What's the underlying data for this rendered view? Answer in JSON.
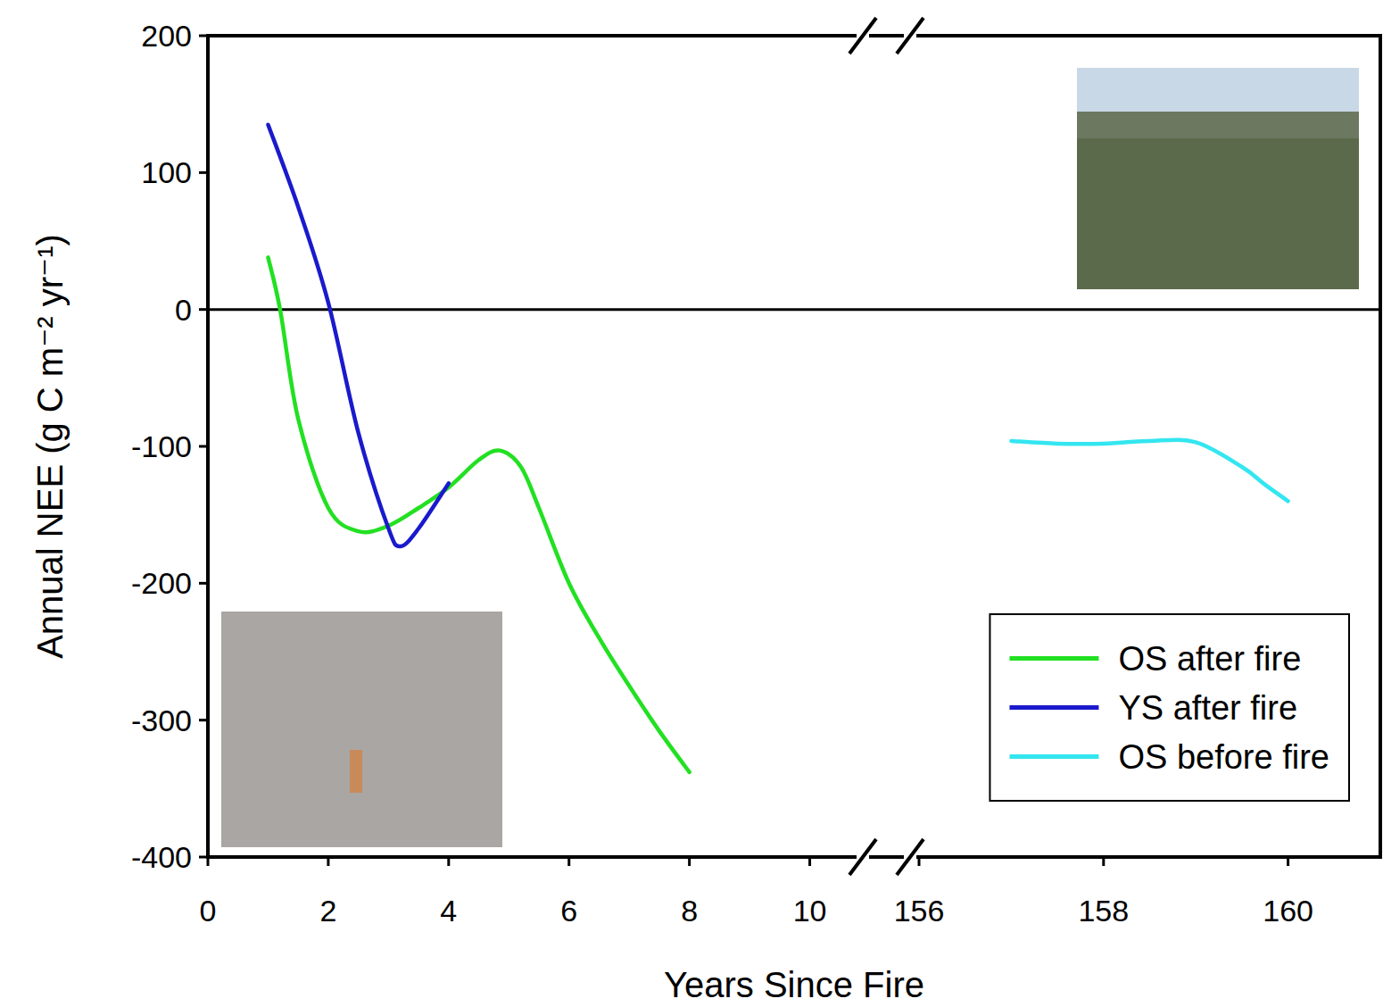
{
  "chart_data": {
    "type": "line",
    "x_label": "Years Since Fire",
    "y_label": "Annual NEE (g C m⁻² yr⁻¹)",
    "xlim": [
      0,
      161
    ],
    "x_break": [
      11,
      156
    ],
    "xticks": [
      0,
      2,
      4,
      6,
      8,
      10,
      156,
      158,
      160
    ],
    "ylim": [
      -400,
      200
    ],
    "yticks": [
      -400,
      -300,
      -200,
      -100,
      0,
      100,
      200
    ],
    "reference_line": 0,
    "grid": false,
    "legend": "lower right",
    "series": [
      {
        "name": "OS after fire",
        "color": "#22e022",
        "x": [
          1,
          1.2,
          1.5,
          2,
          2.5,
          3,
          3.5,
          4,
          4.5,
          4.85,
          5.2,
          5.5,
          6,
          6.5,
          7,
          7.5,
          8
        ],
        "values": [
          38,
          0,
          -80,
          -145,
          -162,
          -158,
          -145,
          -130,
          -110,
          -103,
          -115,
          -145,
          -200,
          -240,
          -275,
          -308,
          -338
        ]
      },
      {
        "name": "YS after fire",
        "color": "#1a1acc",
        "x": [
          1,
          1.5,
          2,
          2.5,
          3,
          3.2,
          3.5,
          4
        ],
        "values": [
          135,
          75,
          5,
          -90,
          -160,
          -173,
          -160,
          -127
        ]
      },
      {
        "name": "OS before fire",
        "color": "#33e6f0",
        "x": [
          157,
          157.5,
          158,
          158.5,
          159,
          159.5,
          159.75,
          160
        ],
        "values": [
          -96,
          -98,
          -98,
          -96,
          -97,
          -115,
          -128,
          -140
        ]
      }
    ]
  }
}
